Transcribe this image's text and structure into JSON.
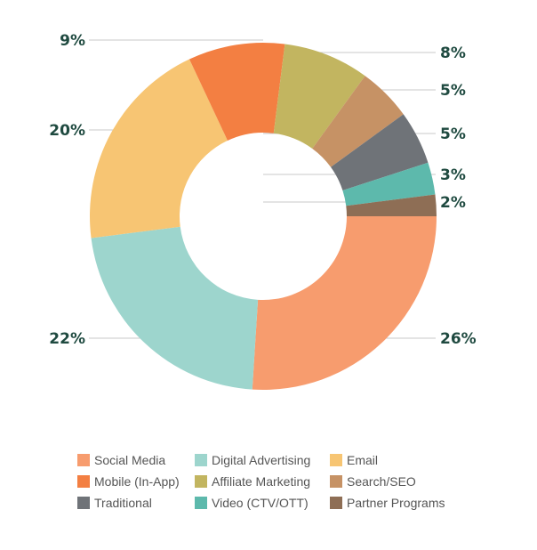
{
  "chart_data": {
    "type": "donut",
    "series": [
      {
        "name": "Social Media",
        "value": 26,
        "label": "26%",
        "color": "#F79C6E"
      },
      {
        "name": "Digital Advertising",
        "value": 22,
        "label": "22%",
        "color": "#9DD5CD"
      },
      {
        "name": "Email",
        "value": 20,
        "label": "20%",
        "color": "#F7C573"
      },
      {
        "name": "Mobile (In-App)",
        "value": 9,
        "label": "9%",
        "color": "#F37F42"
      },
      {
        "name": "Affiliate Marketing",
        "value": 8,
        "label": "8%",
        "color": "#C2B560"
      },
      {
        "name": "Search/SEO",
        "value": 5,
        "label": "5%",
        "color": "#C69265"
      },
      {
        "name": "Traditional",
        "value": 5,
        "label": "5%",
        "color": "#6F7378"
      },
      {
        "name": "Video (CTV/OTT)",
        "value": 3,
        "label": "3%",
        "color": "#5DB9AC"
      },
      {
        "name": "Partner Programs",
        "value": 2,
        "label": "2%",
        "color": "#8E6E55"
      }
    ],
    "legend_position": "bottom",
    "legend_order": [
      "Social Media",
      "Digital Advertising",
      "Email",
      "Mobile (In-App)",
      "Affiliate Marketing",
      "Search/SEO",
      "Traditional",
      "Video (CTV/OTT)",
      "Partner Programs"
    ],
    "label_color": "#1F4A40"
  }
}
